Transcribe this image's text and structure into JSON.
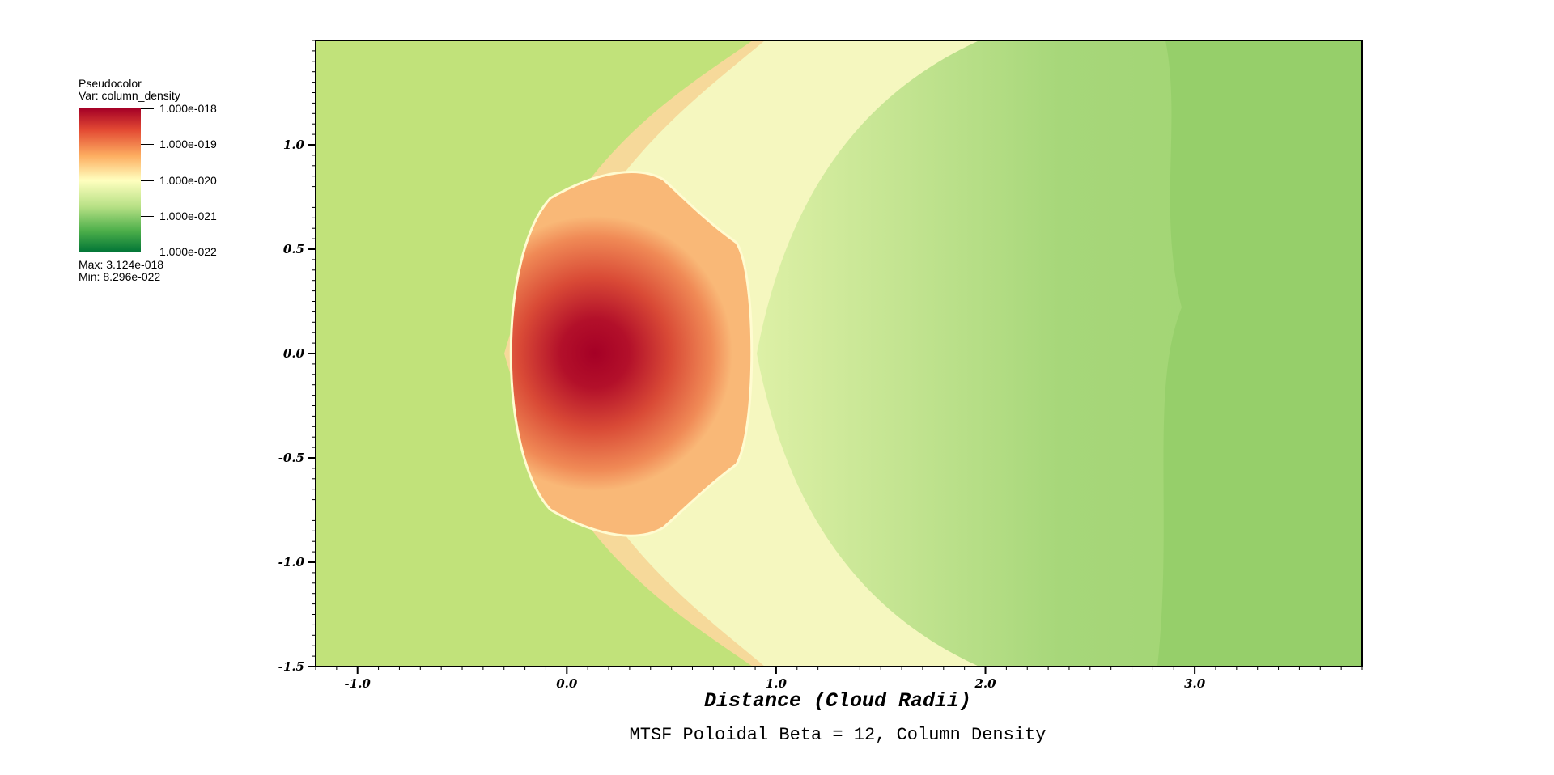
{
  "chart_data": {
    "type": "heatmap",
    "variable": "column_density",
    "xlabel": "Distance (Cloud Radii)",
    "caption": "MTSF Poloidal Beta = 12, Column Density",
    "xlim": [
      -1.2,
      3.8
    ],
    "ylim": [
      -1.5,
      1.5
    ],
    "x_ticks": [
      "-1.0",
      "0.0",
      "1.0",
      "2.0",
      "3.0"
    ],
    "x_tick_values": [
      -1.0,
      0.0,
      1.0,
      2.0,
      3.0
    ],
    "y_ticks": [
      "1.0",
      "0.5",
      "0.0",
      "-0.5",
      "-1.0",
      "-1.5"
    ],
    "y_tick_values": [
      1.0,
      0.5,
      0.0,
      -0.5,
      -1.0,
      -1.5
    ],
    "colormap": [
      "#a50026",
      "#e34a33",
      "#fdae61",
      "#ffffbf",
      "#b8e186",
      "#4daf4a",
      "#007436"
    ],
    "background_color": "#c1e27a",
    "legend": {
      "title": "Pseudocolor",
      "var_label": "Var: column_density",
      "labels": [
        "1.000e-018",
        "1.000e-019",
        "1.000e-020",
        "1.000e-021",
        "1.000e-022"
      ],
      "max_label": "Max:  3.124e-018",
      "min_label": "Min:  8.296e-022",
      "placement": "top-left"
    }
  }
}
